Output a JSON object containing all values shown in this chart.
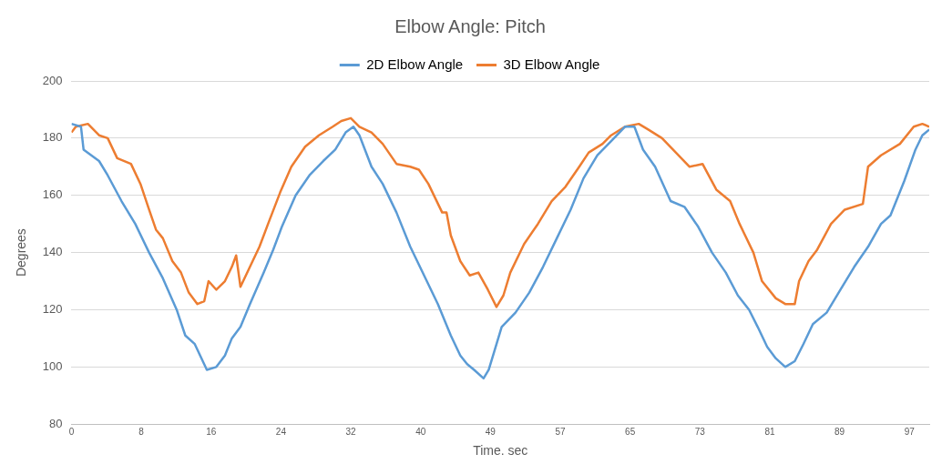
{
  "chart_data": {
    "type": "line",
    "title": "Elbow Angle: Pitch",
    "xlabel": "Time. sec",
    "ylabel": "Degrees",
    "legend": "top",
    "grid": "y",
    "marker": "none",
    "line_style": "solid",
    "xlim": [
      0,
      99.5
    ],
    "xticks": [
      {
        "value": 0,
        "label": "0"
      },
      {
        "value": 8.1,
        "label": "8"
      },
      {
        "value": 16.2,
        "label": "16"
      },
      {
        "value": 24.3,
        "label": "24"
      },
      {
        "value": 32.4,
        "label": "32"
      },
      {
        "value": 40.5,
        "label": "40"
      },
      {
        "value": 48.6,
        "label": "49"
      },
      {
        "value": 56.7,
        "label": "57"
      },
      {
        "value": 64.8,
        "label": "65"
      },
      {
        "value": 72.9,
        "label": "73"
      },
      {
        "value": 81,
        "label": "81"
      },
      {
        "value": 89.1,
        "label": "89"
      },
      {
        "value": 97.2,
        "label": "97"
      }
    ],
    "ylim": [
      80,
      200
    ],
    "yticks": [
      80,
      100,
      120,
      140,
      160,
      180,
      200
    ],
    "series": [
      {
        "name": "2D Elbow Angle",
        "color": "#5b9bd5",
        "x": [
          0,
          1.1,
          1.4,
          3.2,
          4.2,
          5.8,
          7.4,
          9.0,
          10.6,
          12.2,
          13.2,
          14.3,
          15.7,
          16.8,
          17.8,
          18.6,
          19.6,
          20.7,
          22.3,
          23.4,
          24.4,
          26.0,
          27.6,
          29.2,
          30.6,
          31.8,
          32.7,
          33.4,
          34.8,
          36.1,
          37.7,
          39.3,
          40.9,
          42.5,
          44.0,
          45.1,
          45.9,
          46.7,
          47.8,
          48.4,
          49.0,
          49.9,
          51.5,
          53.1,
          54.7,
          56.3,
          57.9,
          59.4,
          61.0,
          62.6,
          64.2,
          65.3,
          66.3,
          67.7,
          69.5,
          71.1,
          72.7,
          74.3,
          75.9,
          77.3,
          78.6,
          79.6,
          80.7,
          81.7,
          82.8,
          83.9,
          84.9,
          86.0,
          87.6,
          89.2,
          90.8,
          92.4,
          93.9,
          95.0,
          96.6,
          97.9,
          98.7,
          99.5
        ],
        "values": [
          185,
          184,
          176,
          172,
          167,
          158,
          150,
          140,
          131,
          120,
          111,
          108,
          99,
          100,
          104,
          110,
          114,
          122,
          133,
          141,
          149,
          160,
          167,
          172,
          176,
          182,
          184,
          181,
          170,
          164,
          154,
          142,
          132,
          122,
          111,
          104,
          101,
          99,
          96,
          99,
          105,
          114,
          119,
          126,
          135,
          145,
          155,
          166,
          174,
          179,
          184,
          184,
          176,
          170,
          158,
          156,
          149,
          140,
          133,
          125,
          120,
          114,
          107,
          103,
          100,
          102,
          108,
          115,
          119,
          127,
          135,
          142,
          150,
          153,
          165,
          176,
          181,
          183
        ]
      },
      {
        "name": "3D Elbow Angle",
        "color": "#ed7d31",
        "x": [
          0,
          0.5,
          1.9,
          3.2,
          4.2,
          5.3,
          6.9,
          8.0,
          9.0,
          9.8,
          10.6,
          11.7,
          12.7,
          13.6,
          14.6,
          15.4,
          15.9,
          16.8,
          17.8,
          18.6,
          19.1,
          19.6,
          20.7,
          21.8,
          22.8,
          24.2,
          25.5,
          27.1,
          28.7,
          30.3,
          31.3,
          32.4,
          33.4,
          34.8,
          36.1,
          37.7,
          39.3,
          40.3,
          41.4,
          43.0,
          43.5,
          44.0,
          45.1,
          46.2,
          47.2,
          48.3,
          49.3,
          50.1,
          50.9,
          52.5,
          54.1,
          55.7,
          57.3,
          58.9,
          60.0,
          61.6,
          62.6,
          64.2,
          65.8,
          66.9,
          68.5,
          70.1,
          71.7,
          73.2,
          74.8,
          76.4,
          77.5,
          79.1,
          80.1,
          81.7,
          82.8,
          83.9,
          84.4,
          85.5,
          86.5,
          88.1,
          89.7,
          91.8,
          92.4,
          93.9,
          96.1,
          97.7,
          98.7,
          99.5
        ],
        "values": [
          182,
          184,
          185,
          181,
          180,
          173,
          171,
          164,
          155,
          148,
          145,
          137,
          133,
          126,
          122,
          123,
          130,
          127,
          130,
          135,
          139,
          128,
          135,
          142,
          150,
          161,
          170,
          177,
          181,
          184,
          186,
          187,
          184,
          182,
          178,
          171,
          170,
          169,
          164,
          154,
          154,
          146,
          137,
          132,
          133,
          127,
          121,
          125,
          133,
          143,
          150,
          158,
          163,
          170,
          175,
          178,
          181,
          184,
          185,
          183,
          180,
          175,
          170,
          171,
          162,
          158,
          150,
          140,
          130,
          124,
          122,
          122,
          130,
          137,
          141,
          150,
          155,
          157,
          170,
          174,
          178,
          184,
          185,
          184
        ]
      }
    ]
  }
}
